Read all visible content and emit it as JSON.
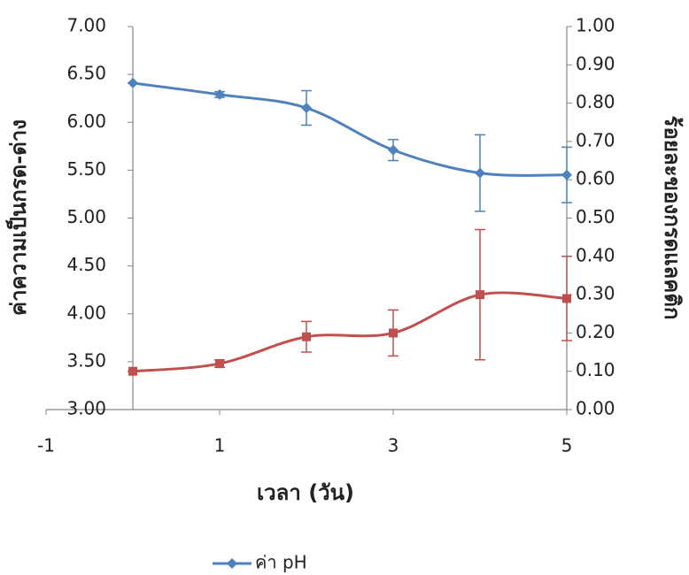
{
  "chart_data": {
    "type": "line",
    "x_label": "เวลา (วัน)",
    "y_label": "ค่าความเป็นกรด-ด่าง",
    "y2_label": "ร้อยละของกรดแลคติก",
    "x": [
      0,
      1,
      2,
      3,
      4,
      5
    ],
    "xlim": [
      -1,
      5
    ],
    "xticks": [
      -1,
      1,
      3,
      5
    ],
    "ylim": [
      3,
      7
    ],
    "yticks": [
      {
        "value": 3,
        "label": "3.00"
      },
      {
        "value": 3.5,
        "label": "3.50"
      },
      {
        "value": 4,
        "label": "4.00"
      },
      {
        "value": 4.5,
        "label": "4.50"
      },
      {
        "value": 5,
        "label": "5.00"
      },
      {
        "value": 5.5,
        "label": "5.50"
      },
      {
        "value": 6,
        "label": "6.00"
      },
      {
        "value": 6.5,
        "label": "6.50"
      },
      {
        "value": 7,
        "label": "7.00"
      }
    ],
    "y2lim": [
      0,
      1
    ],
    "y2ticks": [
      {
        "value": 0,
        "label": "0.00"
      },
      {
        "value": 0.1,
        "label": "0.10"
      },
      {
        "value": 0.2,
        "label": "0.20"
      },
      {
        "value": 0.3,
        "label": "0.30"
      },
      {
        "value": 0.4,
        "label": "0.40"
      },
      {
        "value": 0.5,
        "label": "0.50"
      },
      {
        "value": 0.6,
        "label": "0.60"
      },
      {
        "value": 0.7,
        "label": "0.70"
      },
      {
        "value": 0.8,
        "label": "0.80"
      },
      {
        "value": 0.9,
        "label": "0.90"
      },
      {
        "value": 1,
        "label": "1.00"
      }
    ],
    "series": [
      {
        "name": "ค่า pH",
        "color": "#4f81bd",
        "marker": "diamond",
        "values": [
          6.41,
          6.29,
          6.15,
          5.71,
          5.47,
          5.45
        ],
        "errors": [
          0,
          0.03,
          0.18,
          0.11,
          0.4,
          0.29
        ]
      },
      {
        "color": "#c0504d",
        "marker": "square",
        "axis": "y2",
        "values": [
          0.1,
          0.12,
          0.19,
          0.2,
          0.3,
          0.29
        ],
        "errors": [
          0,
          0.01,
          0.04,
          0.06,
          0.17,
          0.11
        ]
      }
    ]
  }
}
